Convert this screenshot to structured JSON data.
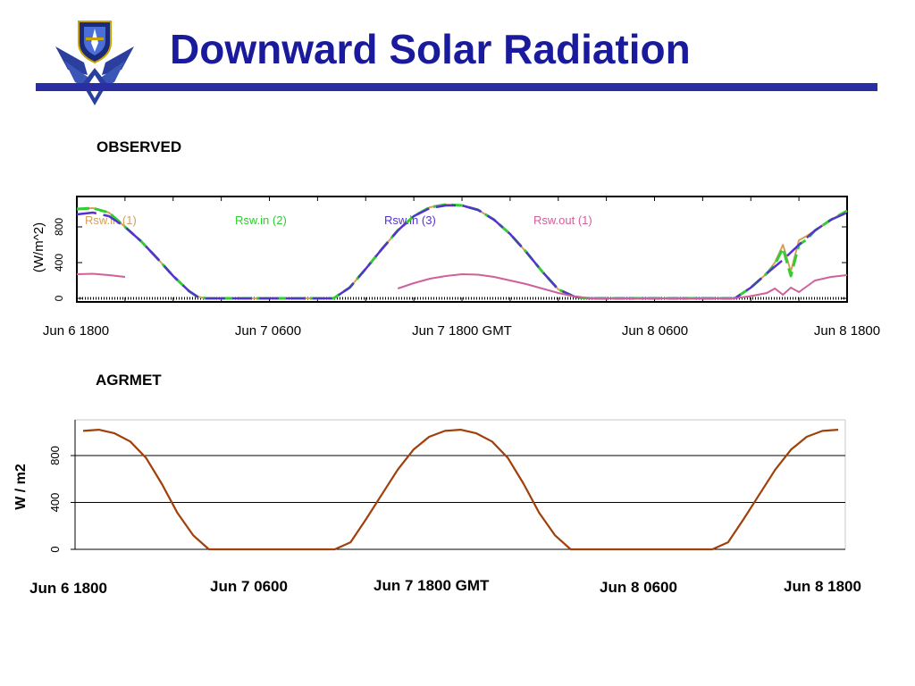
{
  "header": {
    "title": "Downward Solar Radiation",
    "logo_icon": "air-force-wings-logo-icon"
  },
  "colors": {
    "title": "#1a1a9c",
    "rule": "#2b2ea3",
    "rsw_in_1": "#d4a05a",
    "rsw_in_2": "#33cc33",
    "rsw_in_3": "#5533cc",
    "rsw_out_1": "#d0609a",
    "agrmet_line": "#a0400a"
  },
  "chart_data": [
    {
      "type": "line",
      "label": "OBSERVED",
      "ylabel": "(W/m^2)",
      "yticks": [
        "0",
        "400",
        "800"
      ],
      "ylim": [
        0,
        1100
      ],
      "xlim": [
        0,
        48
      ],
      "xticks": [
        {
          "x": 0,
          "label": "Jun  6 1800"
        },
        {
          "x": 12,
          "label": "Jun  7 0600"
        },
        {
          "x": 24,
          "label": "Jun  7 1800 GMT"
        },
        {
          "x": 36,
          "label": "Jun  8 0600"
        },
        {
          "x": 48,
          "label": "Jun  8 1800"
        }
      ],
      "legend": [
        "Rsw.in   (1)",
        "Rsw.in   (2)",
        "Rsw.in   (3)",
        "Rsw.out   (1)"
      ],
      "series": [
        {
          "name": "Rsw.in   (1)",
          "x": [
            0,
            1,
            2,
            3,
            4,
            5,
            6,
            7,
            7.5,
            8,
            16,
            17,
            18,
            19,
            20,
            21,
            22,
            23,
            24,
            25,
            26,
            27,
            28,
            29,
            30,
            31,
            31.5,
            32,
            41,
            42,
            43,
            43.5,
            44,
            44.5,
            45,
            45.5,
            46,
            47,
            48
          ],
          "y": [
            1000,
            1010,
            960,
            800,
            640,
            450,
            250,
            80,
            20,
            0,
            0,
            120,
            330,
            550,
            760,
            920,
            1020,
            1050,
            1040,
            990,
            880,
            720,
            520,
            300,
            100,
            20,
            5,
            0,
            0,
            120,
            280,
            400,
            600,
            300,
            650,
            700,
            760,
            880,
            980
          ]
        },
        {
          "name": "Rsw.in   (2)",
          "x": [
            0,
            1,
            2,
            3,
            4,
            5,
            6,
            7,
            7.5,
            8,
            16,
            17,
            18,
            19,
            20,
            21,
            22,
            23,
            24,
            25,
            26,
            27,
            28,
            29,
            30,
            31,
            31.5,
            32,
            41,
            42,
            43,
            43.5,
            44,
            44.5,
            45,
            45.5,
            46,
            47,
            48
          ],
          "y": [
            1000,
            1010,
            960,
            800,
            640,
            450,
            250,
            80,
            20,
            0,
            0,
            120,
            330,
            550,
            760,
            920,
            1020,
            1050,
            1040,
            990,
            880,
            720,
            520,
            300,
            100,
            20,
            5,
            0,
            0,
            120,
            280,
            380,
            560,
            250,
            600,
            660,
            760,
            880,
            980
          ]
        },
        {
          "name": "Rsw.in   (3)",
          "x": [
            0,
            1,
            2,
            3,
            4,
            5,
            6,
            7,
            7.5,
            8,
            16,
            17,
            18,
            19,
            20,
            21,
            22,
            23,
            24,
            25,
            26,
            27,
            28,
            29,
            30,
            31,
            31.5,
            32,
            41,
            42,
            43,
            44,
            45,
            46,
            47,
            48
          ],
          "y": [
            940,
            960,
            920,
            800,
            640,
            450,
            250,
            80,
            20,
            0,
            0,
            120,
            330,
            550,
            760,
            920,
            1010,
            1040,
            1040,
            990,
            880,
            720,
            520,
            300,
            100,
            20,
            5,
            0,
            0,
            120,
            280,
            430,
            600,
            760,
            880,
            960
          ]
        },
        {
          "name": "Rsw.out   (1)",
          "x": [
            0,
            1,
            2,
            3,
            20,
            21,
            22,
            23,
            24,
            25,
            26,
            27,
            28,
            29,
            30,
            31,
            32,
            41,
            42,
            43,
            43.5,
            44,
            44.5,
            45,
            46,
            47,
            48
          ],
          "y": [
            270,
            275,
            260,
            240,
            110,
            170,
            220,
            250,
            270,
            265,
            240,
            200,
            160,
            110,
            60,
            20,
            0,
            0,
            25,
            60,
            110,
            40,
            120,
            70,
            200,
            240,
            260
          ]
        }
      ]
    },
    {
      "type": "line",
      "label": "AGRMET",
      "ylabel": "W / m2",
      "yticks": [
        "0",
        "400",
        "800"
      ],
      "ylim": [
        0,
        1100
      ],
      "xlim": [
        0,
        48
      ],
      "xticks": [
        "Jun 6 1800",
        "Jun 7 0600",
        "Jun 7 1800 GMT",
        "Jun 8 0600",
        "Jun 8 1800"
      ],
      "series": [
        {
          "name": "",
          "x": [
            0,
            1,
            2,
            3,
            4,
            5,
            6,
            7,
            8,
            9,
            10,
            11,
            12,
            13,
            14,
            15,
            16,
            17,
            18,
            19,
            20,
            21,
            22,
            23,
            24,
            25,
            26,
            27,
            28,
            29,
            30,
            31,
            32,
            33,
            34,
            35,
            36,
            37,
            38,
            39,
            40,
            41,
            42,
            43,
            44,
            45,
            46,
            47,
            48
          ],
          "y": [
            1010,
            1020,
            990,
            920,
            780,
            560,
            310,
            120,
            0,
            0,
            0,
            0,
            0,
            0,
            0,
            0,
            0,
            60,
            260,
            470,
            680,
            850,
            960,
            1010,
            1020,
            990,
            920,
            780,
            560,
            310,
            120,
            0,
            0,
            0,
            0,
            0,
            0,
            0,
            0,
            0,
            0,
            60,
            260,
            470,
            680,
            850,
            960,
            1010,
            1020
          ]
        }
      ]
    }
  ]
}
